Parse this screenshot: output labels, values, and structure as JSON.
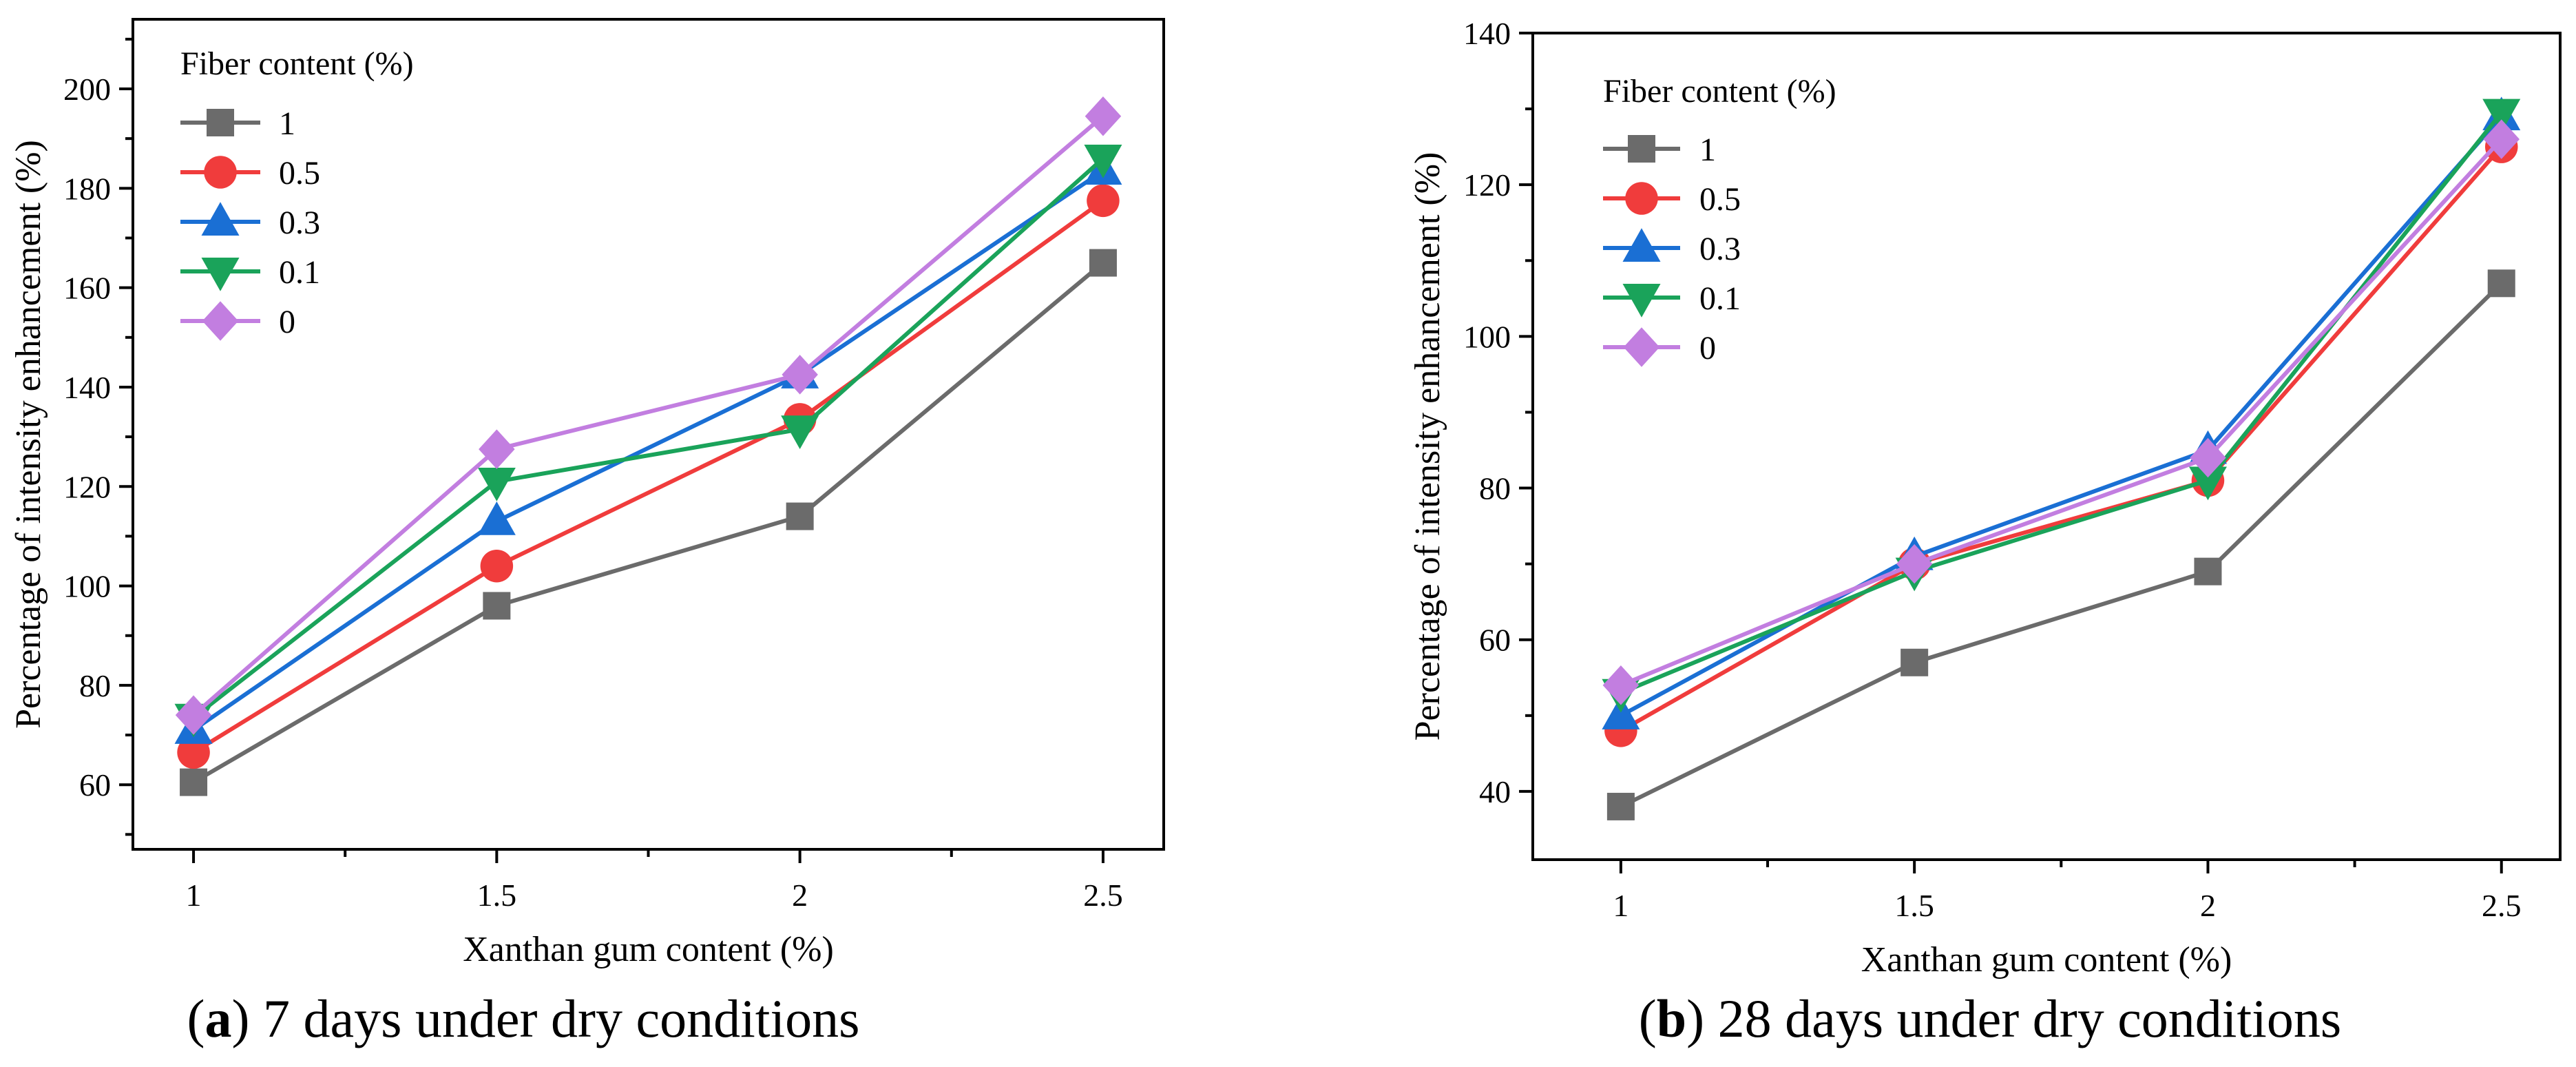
{
  "figure": {
    "caption_a_prefix": "(",
    "caption_a_letter": "a",
    "caption_a_text": ") 7 days under dry conditions",
    "caption_b_prefix": "(",
    "caption_b_letter": "b",
    "caption_b_text": ") 28 days under dry conditions"
  },
  "chart_data": [
    {
      "type": "line",
      "title": "(a) 7 days under dry conditions",
      "xlabel": "Xanthan gum content (%)",
      "ylabel": "Percentage of intensity enhancement (%)",
      "xlim": [
        0.9,
        2.6
      ],
      "ylim": [
        47,
        214
      ],
      "x": [
        1,
        1.5,
        2,
        2.5
      ],
      "x_tick_labels": [
        "1",
        "1.5",
        "2",
        "2.5"
      ],
      "y_ticks": [
        60,
        80,
        100,
        120,
        140,
        160,
        180,
        200
      ],
      "y_tick_labels": [
        "60",
        "80",
        "100",
        "120",
        "140",
        "160",
        "180",
        "200"
      ],
      "legend_title": "Fiber content (%)",
      "legend_position": "top-left",
      "series": [
        {
          "name": "1",
          "color": "#6b6b6b",
          "marker": "square",
          "values": [
            60.5,
            96,
            114,
            165
          ]
        },
        {
          "name": "0.5",
          "color": "#f03c3c",
          "marker": "circle",
          "values": [
            66.5,
            104,
            133.5,
            177.5
          ]
        },
        {
          "name": "0.3",
          "color": "#1a6fd4",
          "marker": "triangle-up",
          "values": [
            71,
            113,
            142.5,
            183.5
          ]
        },
        {
          "name": "0.1",
          "color": "#1aa35a",
          "marker": "triangle-down",
          "values": [
            73.5,
            121,
            131.5,
            186
          ]
        },
        {
          "name": "0",
          "color": "#c27ee0",
          "marker": "diamond",
          "values": [
            74,
            127.5,
            142.5,
            194.5
          ]
        }
      ]
    },
    {
      "type": "line",
      "title": "(b) 28 days under dry conditions",
      "xlabel": "Xanthan gum content (%)",
      "ylabel": "Percentage of intensity enhancement (%)",
      "xlim": [
        0.85,
        2.6
      ],
      "ylim": [
        31,
        140
      ],
      "x": [
        1,
        1.5,
        2,
        2.5
      ],
      "x_tick_labels": [
        "1",
        "1.5",
        "2",
        "2.5"
      ],
      "y_ticks": [
        40,
        60,
        80,
        100,
        120,
        140
      ],
      "y_tick_labels": [
        "40",
        "60",
        "80",
        "100",
        "120",
        "140"
      ],
      "legend_title": "Fiber content (%)",
      "legend_position": "top-left",
      "series": [
        {
          "name": "1",
          "color": "#6b6b6b",
          "marker": "square",
          "values": [
            38,
            57,
            69,
            107
          ]
        },
        {
          "name": "0.5",
          "color": "#f03c3c",
          "marker": "circle",
          "values": [
            48,
            70,
            81,
            125
          ]
        },
        {
          "name": "0.3",
          "color": "#1a6fd4",
          "marker": "triangle-up",
          "values": [
            50,
            71,
            85,
            129
          ]
        },
        {
          "name": "0.1",
          "color": "#1aa35a",
          "marker": "triangle-down",
          "values": [
            53,
            69,
            81,
            129.5
          ]
        },
        {
          "name": "0",
          "color": "#c27ee0",
          "marker": "diamond",
          "values": [
            54,
            70,
            84,
            126
          ]
        }
      ]
    }
  ]
}
